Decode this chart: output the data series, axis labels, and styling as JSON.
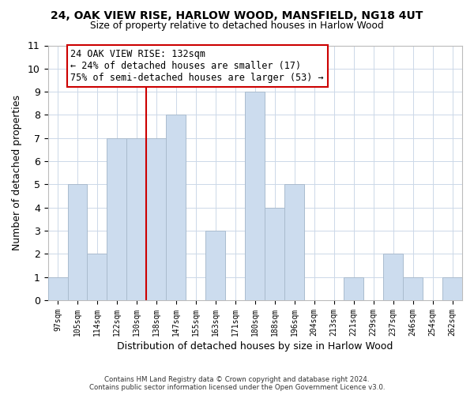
{
  "title1": "24, OAK VIEW RISE, HARLOW WOOD, MANSFIELD, NG18 4UT",
  "title2": "Size of property relative to detached houses in Harlow Wood",
  "xlabel": "Distribution of detached houses by size in Harlow Wood",
  "ylabel": "Number of detached properties",
  "bin_labels": [
    "97sqm",
    "105sqm",
    "114sqm",
    "122sqm",
    "130sqm",
    "138sqm",
    "147sqm",
    "155sqm",
    "163sqm",
    "171sqm",
    "180sqm",
    "188sqm",
    "196sqm",
    "204sqm",
    "213sqm",
    "221sqm",
    "229sqm",
    "237sqm",
    "246sqm",
    "254sqm",
    "262sqm"
  ],
  "bar_heights": [
    1,
    5,
    2,
    7,
    7,
    7,
    8,
    0,
    3,
    0,
    9,
    4,
    5,
    0,
    0,
    1,
    0,
    2,
    1,
    0,
    1
  ],
  "bar_color": "#ccdcee",
  "bar_edge_color": "#aabcce",
  "vline_bin_index": 4,
  "vline_color": "#cc0000",
  "annotation_title": "24 OAK VIEW RISE: 132sqm",
  "annotation_line1": "← 24% of detached houses are smaller (17)",
  "annotation_line2": "75% of semi-detached houses are larger (53) →",
  "annotation_box_color": "#ffffff",
  "annotation_box_edge": "#cc0000",
  "ylim": [
    0,
    11
  ],
  "yticks": [
    0,
    1,
    2,
    3,
    4,
    5,
    6,
    7,
    8,
    9,
    10,
    11
  ],
  "footer1": "Contains HM Land Registry data © Crown copyright and database right 2024.",
  "footer2": "Contains public sector information licensed under the Open Government Licence v3.0.",
  "bg_color": "#ffffff",
  "grid_color": "#ccd8e8"
}
